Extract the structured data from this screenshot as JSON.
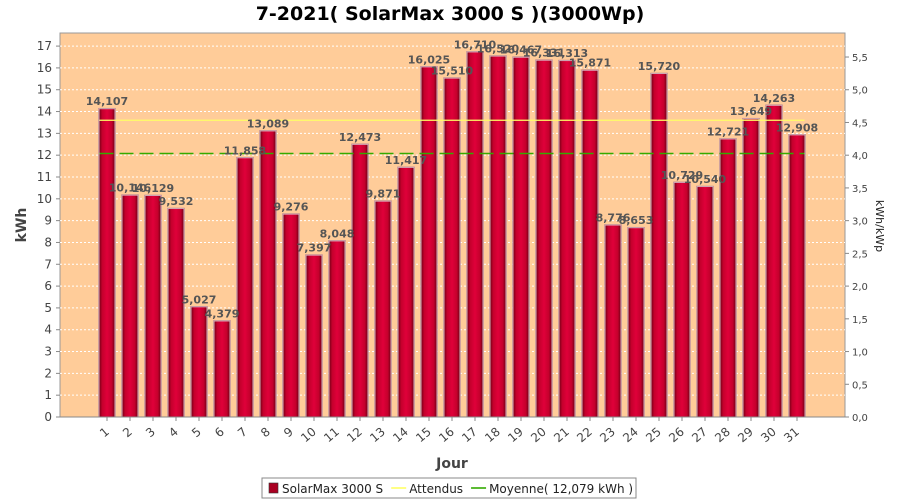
{
  "chart_data": {
    "type": "bar",
    "title": "7-2021( SolarMax 3000 S )(3000Wp)",
    "xlabel": "Jour",
    "ylabel": "kWh",
    "ylabel_right": "kWh/kWp",
    "ylim": [
      0,
      17.6
    ],
    "ylim_right": [
      0,
      5.867
    ],
    "yticks": [
      "0",
      "1",
      "2",
      "3",
      "4",
      "5",
      "6",
      "7",
      "8",
      "9",
      "10",
      "11",
      "12",
      "13",
      "14",
      "15",
      "16",
      "17"
    ],
    "yticks_right": [
      "0,0",
      "0,5",
      "1,0",
      "1,5",
      "2,0",
      "2,5",
      "3,0",
      "3,5",
      "4,0",
      "4,5",
      "5,0",
      "5,5"
    ],
    "categories": [
      "1",
      "2",
      "3",
      "4",
      "5",
      "6",
      "7",
      "8",
      "9",
      "10",
      "11",
      "12",
      "13",
      "14",
      "15",
      "16",
      "17",
      "18",
      "19",
      "20",
      "21",
      "22",
      "23",
      "24",
      "25",
      "26",
      "27",
      "28",
      "29",
      "30",
      "31"
    ],
    "series": [
      {
        "name": "SolarMax 3000 S",
        "color": "#cc0033",
        "values": [
          14.107,
          10.146,
          10.129,
          9.532,
          5.027,
          4.379,
          11.858,
          13.089,
          9.276,
          7.397,
          8.048,
          12.473,
          9.871,
          11.417,
          16.025,
          15.51,
          16.71,
          16.52,
          16.467,
          16.331,
          16.313,
          15.871,
          8.776,
          8.653,
          15.72,
          10.729,
          10.54,
          12.721,
          13.649,
          14.263,
          12.908
        ],
        "labels": [
          "14,107",
          "10,146",
          "10,129",
          "9,532",
          "5,027",
          "4,379",
          "11,858",
          "13,089",
          "9,276",
          "7,397",
          "8,048",
          "12,473",
          "9,871",
          "11,417",
          "16,025",
          "15,510",
          "16,710",
          "16,520",
          "16,467",
          "16,331",
          "16,313",
          "15,871",
          "8,776",
          "8,653",
          "15,720",
          "10,729",
          "10,540",
          "12,721",
          "13,649",
          "14,263",
          "12,908"
        ]
      }
    ],
    "lines": [
      {
        "name": "Attendus",
        "value": 13.6,
        "color": "#ffff66",
        "style": "solid"
      },
      {
        "name": "Moyenne",
        "value": 12.079,
        "color": "#33aa00",
        "style": "dashed"
      }
    ],
    "legend": {
      "position": "bottom",
      "items": [
        {
          "label": "SolarMax 3000 S",
          "color": "#aa0022",
          "kind": "box"
        },
        {
          "label": "Attendus",
          "color": "#ffff66",
          "kind": "line"
        },
        {
          "label": "Moyenne( 12,079 kWh )",
          "color": "#33aa00",
          "kind": "line"
        }
      ]
    },
    "colors": {
      "plot_background": "#ffcc99",
      "grid": "#ffffff"
    },
    "grid": true
  }
}
